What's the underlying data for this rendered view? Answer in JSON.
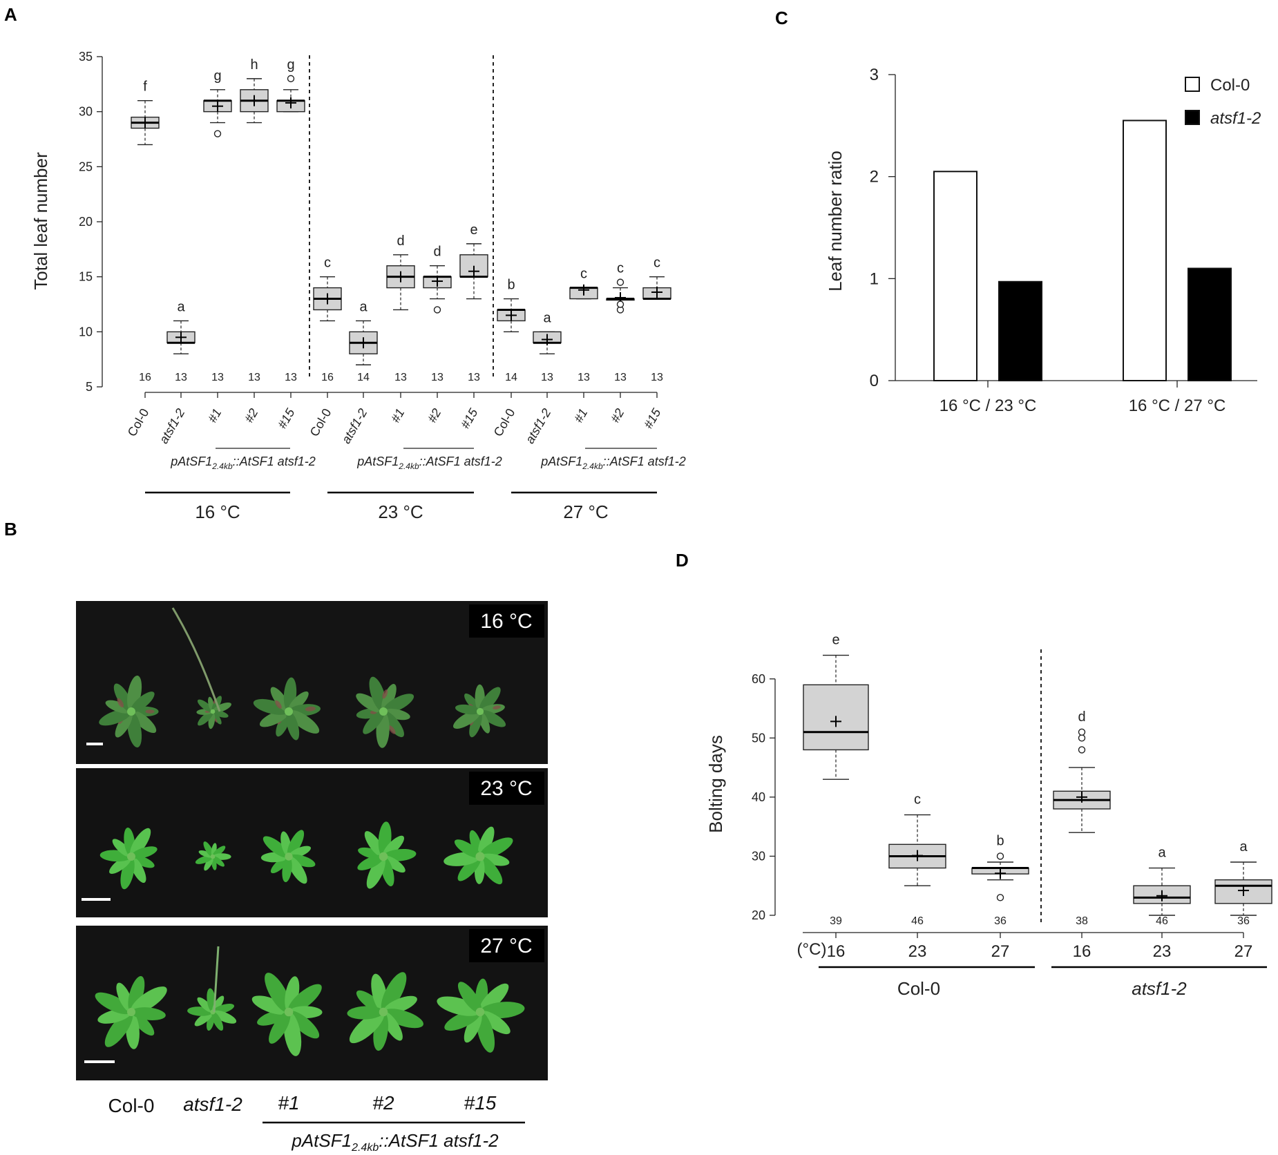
{
  "panels": {
    "a": "A",
    "b": "B",
    "c": "C",
    "d": "D"
  },
  "chart_data": [
    {
      "id": "A",
      "type": "box",
      "ylabel": "Total leaf number",
      "ylim": [
        5,
        35
      ],
      "yticks": [
        5,
        10,
        15,
        20,
        25,
        30,
        35
      ],
      "categories": [
        "Col-0",
        "atsf1-2",
        "#1",
        "#2",
        "#15",
        "Col-0",
        "atsf1-2",
        "#1",
        "#2",
        "#15",
        "Col-0",
        "atsf1-2",
        "#1",
        "#2",
        "#15"
      ],
      "italic_categories": [
        "atsf1-2"
      ],
      "boxes": [
        {
          "min": 27,
          "q1": 28.5,
          "median": 29,
          "q3": 29.5,
          "max": 31,
          "mean": 29,
          "letter": "f",
          "n": "16",
          "outliers": []
        },
        {
          "min": 8,
          "q1": 9,
          "median": 9,
          "q3": 10,
          "max": 11,
          "mean": 9.5,
          "letter": "a",
          "n": "13",
          "outliers": []
        },
        {
          "min": 29,
          "q1": 30,
          "median": 31,
          "q3": 31,
          "max": 32,
          "mean": 30.5,
          "letter": "g",
          "n": "13",
          "outliers": [
            28
          ]
        },
        {
          "min": 29,
          "q1": 30,
          "median": 31,
          "q3": 32,
          "max": 33,
          "mean": 31,
          "letter": "h",
          "n": "13",
          "outliers": []
        },
        {
          "min": 30,
          "q1": 30,
          "median": 31,
          "q3": 31,
          "max": 32,
          "mean": 30.8,
          "letter": "g",
          "n": "13",
          "outliers": [
            33
          ]
        },
        {
          "min": 11,
          "q1": 12,
          "median": 13,
          "q3": 14,
          "max": 15,
          "mean": 13,
          "letter": "c",
          "n": "16",
          "outliers": []
        },
        {
          "min": 7,
          "q1": 8,
          "median": 9,
          "q3": 10,
          "max": 11,
          "mean": 9,
          "letter": "a",
          "n": "14",
          "outliers": []
        },
        {
          "min": 12,
          "q1": 14,
          "median": 15,
          "q3": 16,
          "max": 17,
          "mean": 15,
          "letter": "d",
          "n": "13",
          "outliers": []
        },
        {
          "min": 13,
          "q1": 14,
          "median": 15,
          "q3": 15,
          "max": 16,
          "mean": 14.6,
          "letter": "d",
          "n": "13",
          "outliers": [
            12
          ]
        },
        {
          "min": 13,
          "q1": 15,
          "median": 15,
          "q3": 17,
          "max": 18,
          "mean": 15.5,
          "letter": "e",
          "n": "13",
          "outliers": []
        },
        {
          "min": 10,
          "q1": 11,
          "median": 12,
          "q3": 12,
          "max": 13,
          "mean": 11.5,
          "letter": "b",
          "n": "14",
          "outliers": []
        },
        {
          "min": 8,
          "q1": 9,
          "median": 9,
          "q3": 10,
          "max": 10,
          "mean": 9.3,
          "letter": "a",
          "n": "13",
          "outliers": []
        },
        {
          "min": 13,
          "q1": 13,
          "median": 14,
          "q3": 14,
          "max": 14,
          "mean": 13.8,
          "letter": "c",
          "n": "13",
          "outliers": []
        },
        {
          "min": 13,
          "q1": 13,
          "median": 13,
          "q3": 13,
          "max": 14,
          "mean": 13.1,
          "letter": "c",
          "n": "13",
          "outliers": [
            12,
            12.5,
            14.5
          ]
        },
        {
          "min": 13,
          "q1": 13,
          "median": 13,
          "q3": 14,
          "max": 15,
          "mean": 13.6,
          "letter": "c",
          "n": "13",
          "outliers": []
        }
      ],
      "transgene_label": {
        "pre": "pAtSF1",
        "sub": "2.4kb",
        "post": "::AtSF1 atsf1-2"
      },
      "groups": [
        "16 °C",
        "23 °C",
        "27 °C"
      ]
    },
    {
      "id": "C",
      "type": "bar",
      "ylabel": "Leaf number ratio",
      "ylim": [
        0,
        3
      ],
      "yticks": [
        0,
        1,
        2,
        3
      ],
      "categories": [
        "16 °C / 23 °C",
        "16 °C / 27 °C"
      ],
      "series": [
        {
          "name": "Col-0",
          "values": [
            2.05,
            2.55
          ],
          "color": "#ffffff"
        },
        {
          "name": "atsf1-2",
          "values": [
            0.97,
            1.1
          ],
          "color": "#000000"
        }
      ],
      "legend": "top-right"
    },
    {
      "id": "D",
      "type": "box",
      "ylabel": "Bolting days",
      "ylim": [
        20,
        65
      ],
      "yticks": [
        20,
        30,
        40,
        50,
        60
      ],
      "axis_unit": "(°C)",
      "categories": [
        "16",
        "23",
        "27",
        "16",
        "23",
        "27"
      ],
      "boxes": [
        {
          "min": 43,
          "q1": 48,
          "median": 51,
          "q3": 59,
          "max": 64,
          "mean": 52.8,
          "letter": "e",
          "n": "39",
          "outliers": []
        },
        {
          "min": 25,
          "q1": 28,
          "median": 30,
          "q3": 32,
          "max": 37,
          "mean": 30.1,
          "letter": "c",
          "n": "46",
          "outliers": []
        },
        {
          "min": 26,
          "q1": 27,
          "median": 28,
          "q3": 28,
          "max": 29,
          "mean": 27.1,
          "letter": "b",
          "n": "36",
          "outliers": [
            23,
            30
          ]
        },
        {
          "min": 34,
          "q1": 38,
          "median": 39.5,
          "q3": 41,
          "max": 45,
          "mean": 40,
          "letter": "d",
          "n": "38",
          "outliers": [
            48,
            50,
            51
          ]
        },
        {
          "min": 20,
          "q1": 22,
          "median": 23,
          "q3": 25,
          "max": 28,
          "mean": 23.3,
          "letter": "a",
          "n": "46",
          "outliers": []
        },
        {
          "min": 20,
          "q1": 22,
          "median": 25,
          "q3": 26,
          "max": 29,
          "mean": 24.2,
          "letter": "a",
          "n": "36",
          "outliers": []
        }
      ],
      "groups": [
        "Col-0",
        "atsf1-2"
      ],
      "italic_groups": [
        "atsf1-2"
      ]
    }
  ],
  "photos": {
    "temps": [
      "16 °C",
      "23 °C",
      "27 °C"
    ],
    "labels": [
      "Col-0",
      "atsf1-2",
      "#1",
      "#2",
      "#15"
    ],
    "transgene_label": {
      "pre": "pAtSF1",
      "sub": "2.4kb",
      "post": "::AtSF1 atsf1-2"
    }
  }
}
